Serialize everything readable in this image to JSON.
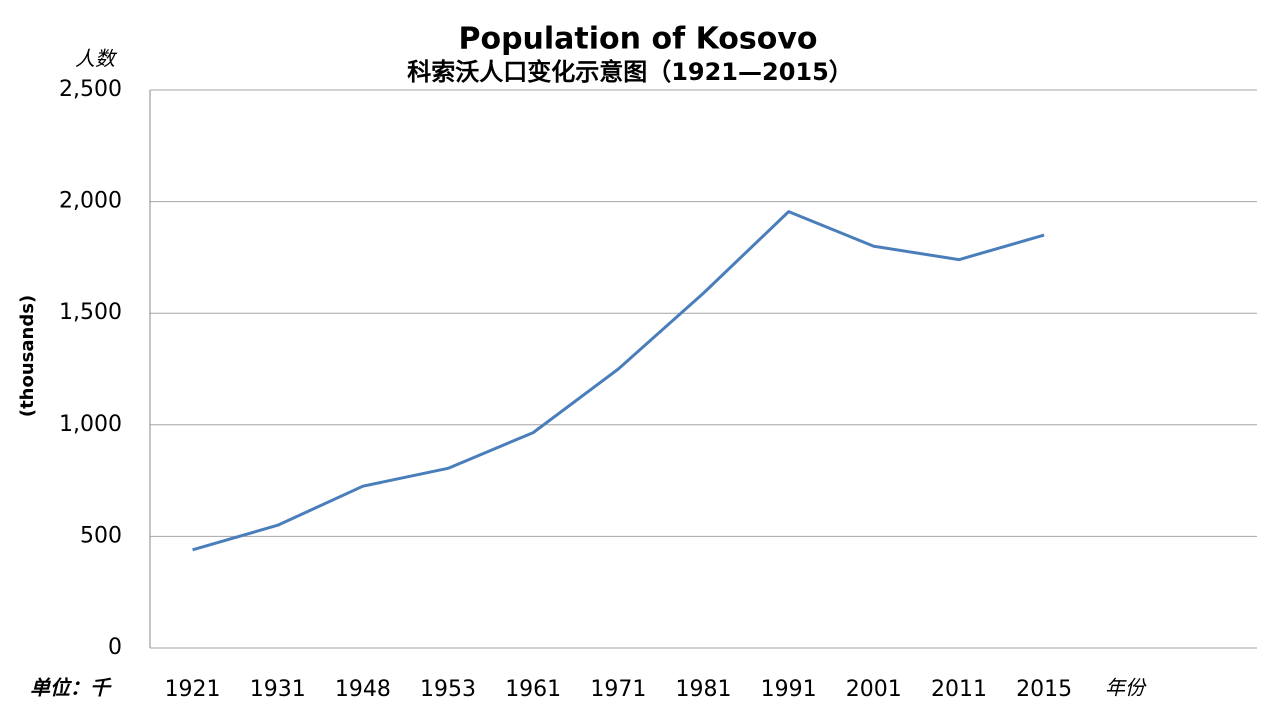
{
  "chart_data": {
    "type": "line",
    "title": "Population of Kosovo",
    "subtitle": "科索沃人口变化示意图（1921—2015）",
    "y_label": "(thousands)",
    "y_annotation": "人数",
    "unit_annotation": "单位：千",
    "x_annotation": "年份",
    "categories": [
      "1921",
      "1931",
      "1948",
      "1953",
      "1961",
      "1971",
      "1981",
      "1991",
      "2001",
      "2011",
      "2015",
      null,
      null
    ],
    "series": [
      {
        "name": "Population",
        "color": "#4a7ebb",
        "values": [
          440,
          550,
          725,
          805,
          965,
          1250,
          1590,
          1955,
          1800,
          1740,
          1850,
          null,
          null
        ]
      }
    ],
    "ylim": [
      0,
      2500
    ],
    "yticks": [
      0,
      500,
      {
        "value": 1000,
        "label": "1,000"
      },
      {
        "value": 1500,
        "label": "1,500"
      },
      {
        "value": 2000,
        "label": "2,000"
      },
      {
        "value": 2500,
        "label": "2,500"
      }
    ],
    "grid": true
  }
}
